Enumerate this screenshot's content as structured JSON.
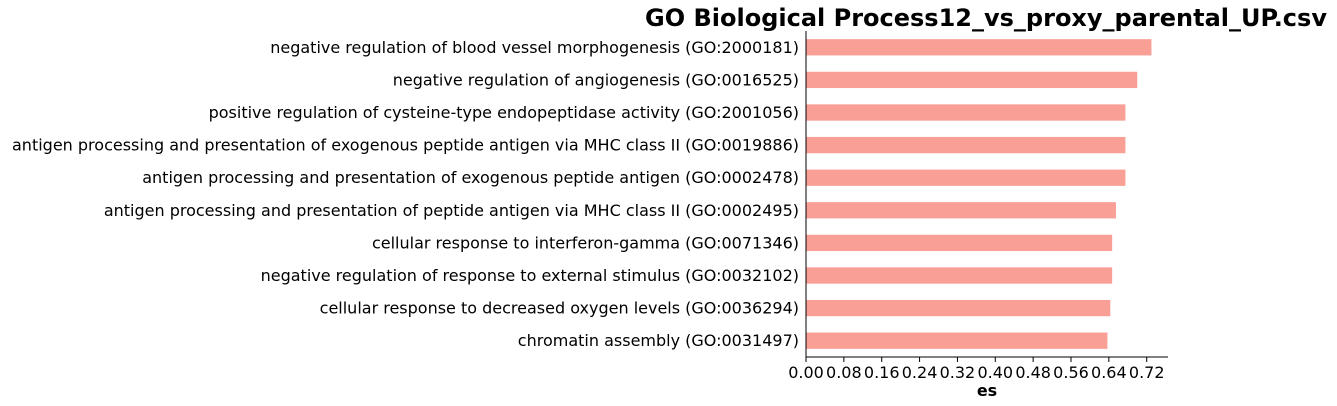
{
  "chart_data": {
    "type": "bar",
    "orientation": "horizontal",
    "title": "GO Biological Process12_vs_proxy_parental_UP.csv",
    "xlabel": "es",
    "ylabel": "",
    "xlim": [
      0,
      0.765
    ],
    "xticks": [
      "0.00",
      "0.08",
      "0.16",
      "0.24",
      "0.32",
      "0.40",
      "0.48",
      "0.56",
      "0.64",
      "0.72"
    ],
    "grid": false,
    "bar_color": "#fa9f96",
    "categories": [
      "negative regulation of blood vessel morphogenesis (GO:2000181)",
      "negative regulation of angiogenesis (GO:0016525)",
      "positive regulation of cysteine-type endopeptidase activity (GO:2001056)",
      "antigen processing and presentation of exogenous peptide antigen via MHC class II (GO:0019886)",
      "antigen processing and presentation of exogenous peptide antigen (GO:0002478)",
      "antigen processing and presentation of peptide antigen via MHC class II (GO:0002495)",
      "cellular response to interferon-gamma (GO:0071346)",
      "negative regulation of response to external stimulus (GO:0032102)",
      "cellular response to decreased oxygen levels (GO:0036294)",
      "chromatin assembly (GO:0031497)"
    ],
    "values": [
      0.73,
      0.7,
      0.675,
      0.675,
      0.675,
      0.655,
      0.647,
      0.647,
      0.643,
      0.637
    ]
  }
}
